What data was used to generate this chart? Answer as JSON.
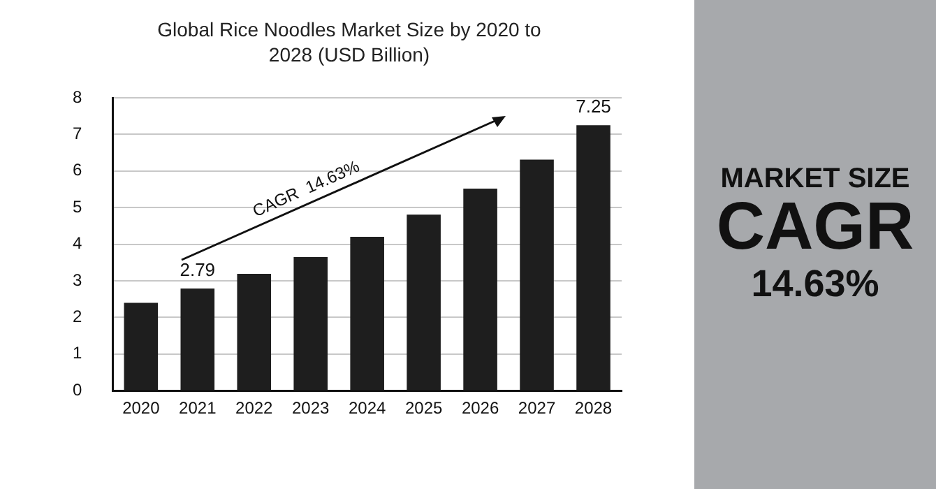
{
  "chart_data": {
    "type": "bar",
    "title": "Global Rice Noodles Market Size by 2020 to 2028 (USD Billion)",
    "categories": [
      "2020",
      "2021",
      "2022",
      "2023",
      "2024",
      "2025",
      "2026",
      "2027",
      "2028"
    ],
    "values": [
      2.4,
      2.79,
      3.19,
      3.65,
      4.2,
      4.81,
      5.52,
      6.31,
      7.25
    ],
    "value_labels": [
      null,
      "2.79",
      null,
      null,
      null,
      null,
      null,
      null,
      "7.25"
    ],
    "color": "#1e1e1e",
    "ylim": [
      0,
      8
    ],
    "yticks": [
      0,
      1,
      2,
      3,
      4,
      5,
      6,
      7,
      8
    ],
    "grid": "y",
    "legend": false,
    "annotations": [
      "CAGR  14.63%",
      "MARKET SIZE",
      "CAGR",
      "14.63%"
    ]
  }
}
